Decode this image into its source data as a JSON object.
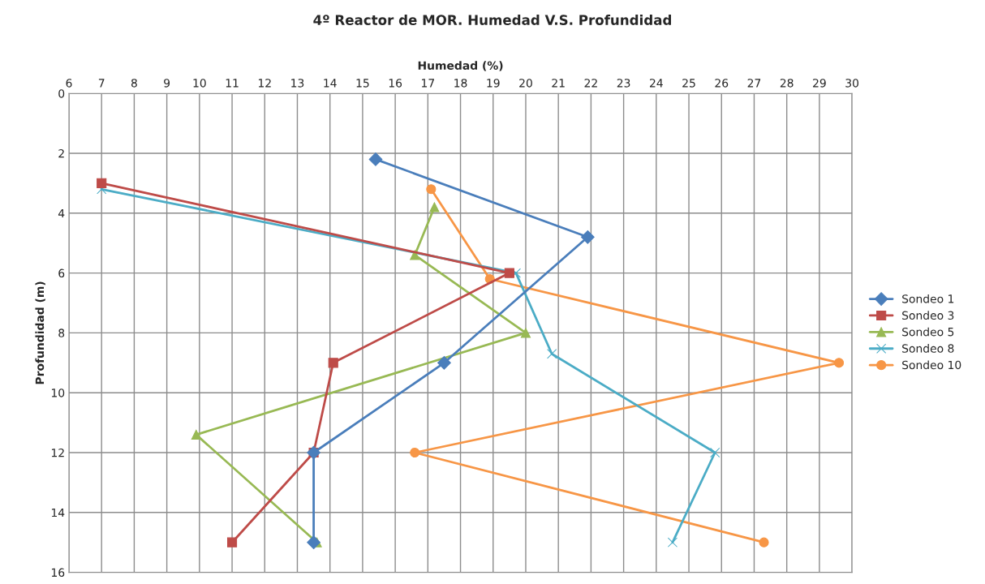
{
  "chart_data": {
    "type": "line",
    "title": "4º Reactor de MOR. Humedad V.S. Profundidad",
    "xlabel": "Humedad (%)",
    "ylabel": "Profundidad (m)",
    "xlim": [
      6,
      30
    ],
    "xticks": [
      6,
      7,
      8,
      9,
      10,
      11,
      12,
      13,
      14,
      15,
      16,
      17,
      18,
      19,
      20,
      21,
      22,
      23,
      24,
      25,
      26,
      27,
      28,
      29,
      30
    ],
    "ylim": [
      16,
      0
    ],
    "yticks": [
      0,
      2,
      4,
      6,
      8,
      10,
      12,
      14,
      16
    ],
    "grid": true,
    "legend": "right",
    "series": [
      {
        "name": "Sondeo 1",
        "color": "#4a7ebb",
        "marker": "diamond",
        "x": [
          15.4,
          21.9,
          17.5,
          13.5,
          13.5
        ],
        "values": [
          2.2,
          4.8,
          9.0,
          12.0,
          15.0
        ]
      },
      {
        "name": "Sondeo 3",
        "color": "#be4b48",
        "marker": "square",
        "x": [
          7.0,
          19.5,
          14.1,
          13.5,
          11.0
        ],
        "values": [
          3.0,
          6.0,
          9.0,
          12.0,
          15.0
        ]
      },
      {
        "name": "Sondeo 5",
        "color": "#98b954",
        "marker": "triangle",
        "x": [
          17.2,
          16.6,
          20.0,
          9.9,
          13.6
        ],
        "values": [
          3.8,
          5.4,
          8.0,
          11.4,
          15.0
        ]
      },
      {
        "name": "Sondeo 8",
        "color": "#4bacc6",
        "marker": "cross",
        "x": [
          7.0,
          19.7,
          20.8,
          25.8,
          24.5
        ],
        "values": [
          3.2,
          6.0,
          8.7,
          12.0,
          15.0
        ]
      },
      {
        "name": "Sondeo 10",
        "color": "#f79646",
        "marker": "circle",
        "x": [
          17.1,
          18.9,
          29.6,
          16.6,
          27.3
        ],
        "values": [
          3.2,
          6.2,
          9.0,
          12.0,
          15.0
        ]
      }
    ]
  }
}
